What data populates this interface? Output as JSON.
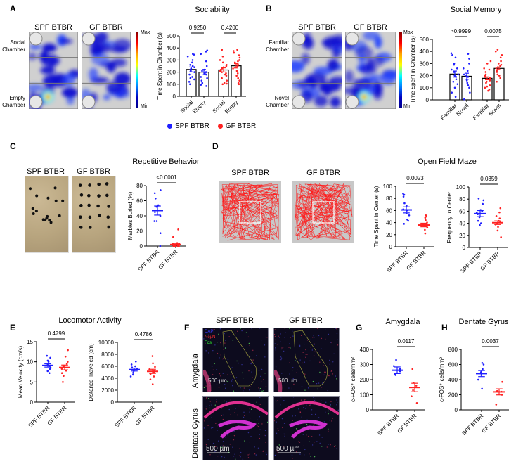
{
  "panels": {
    "A": {
      "label": "A",
      "title": "Sociability",
      "groups": [
        "SPF BTBR",
        "GF BTBR"
      ],
      "rows": [
        "Social Chamber",
        "Empty Chamber"
      ],
      "colorbar": {
        "max": "Max",
        "min": "Min"
      }
    },
    "B": {
      "label": "B",
      "title": "Social Memory",
      "groups": [
        "SPF BTBR",
        "GF BTBR"
      ],
      "rows": [
        "Familiar Chamber",
        "Novel Chamber"
      ],
      "colorbar": {
        "max": "Max",
        "min": "Min"
      }
    },
    "C": {
      "label": "C",
      "title": "Repetitive Behavior",
      "groups": [
        "SPF BTBR",
        "GF BTBR"
      ]
    },
    "D": {
      "label": "D",
      "title": "Open Field Maze",
      "groups": [
        "SPF BTBR",
        "GF BTBR"
      ]
    },
    "E": {
      "label": "E",
      "title": "Locomotor Activity"
    },
    "F": {
      "label": "F",
      "groups": [
        "SPF BTBR",
        "GF BTBR"
      ],
      "rows": [
        "Amygdala",
        "Dentate Gyrus"
      ],
      "channels": [
        "DAPI",
        "NeuN",
        "Fos"
      ],
      "scale_bar": "500 µm"
    },
    "G": {
      "label": "G",
      "title": "Amygdala"
    },
    "H": {
      "label": "H",
      "title": "Dentate Gyrus"
    }
  },
  "legend": [
    {
      "name": "SPF BTBR",
      "color": "#1f1fff"
    },
    {
      "name": "GF BTBR",
      "color": "#ff2222"
    }
  ],
  "colors": {
    "SPF BTBR": "#1f1fff",
    "GF BTBR": "#ff2222"
  },
  "chart_data": [
    {
      "id": "A",
      "type": "bar",
      "title": "Sociability",
      "ylabel": "Time Spent in Chamber (s)",
      "ylim": [
        0,
        500
      ],
      "yticks": [
        0,
        100,
        200,
        300,
        400,
        500
      ],
      "categories": [
        "Social",
        "Empty",
        "Social",
        "Empty"
      ],
      "groups": [
        {
          "series": "SPF BTBR",
          "mean": 222,
          "sem": 20,
          "points": [
            100,
            120,
            140,
            150,
            160,
            180,
            200,
            210,
            220,
            230,
            240,
            250,
            260,
            280,
            300,
            330,
            345,
            350
          ]
        },
        {
          "series": "SPF BTBR",
          "mean": 200,
          "sem": 22,
          "points": [
            85,
            95,
            110,
            130,
            150,
            160,
            180,
            190,
            200,
            210,
            220,
            250,
            290,
            350,
            370,
            380
          ]
        },
        {
          "series": "GF BTBR",
          "mean": 218,
          "sem": 17,
          "points": [
            100,
            105,
            110,
            130,
            150,
            170,
            180,
            190,
            200,
            210,
            215,
            220,
            230,
            240,
            250,
            260,
            280,
            300,
            330,
            385
          ]
        },
        {
          "series": "GF BTBR",
          "mean": 252,
          "sem": 18,
          "points": [
            100,
            110,
            130,
            150,
            170,
            190,
            210,
            230,
            250,
            260,
            270,
            280,
            290,
            300,
            320,
            340,
            360,
            375,
            385
          ]
        }
      ],
      "comparisons": [
        {
          "pair": [
            0,
            1
          ],
          "p": "0.9250"
        },
        {
          "pair": [
            2,
            3
          ],
          "p": "0.4200"
        }
      ]
    },
    {
      "id": "B",
      "type": "bar",
      "title": "Social Memory",
      "ylabel": "Time Spent in Chamber (s)",
      "ylim": [
        0,
        500
      ],
      "yticks": [
        0,
        100,
        200,
        300,
        400,
        500
      ],
      "categories": [
        "Familiar",
        "Novel",
        "Familiar",
        "Novel"
      ],
      "groups": [
        {
          "series": "SPF BTBR",
          "mean": 213,
          "sem": 25,
          "points": [
            25,
            60,
            100,
            130,
            150,
            170,
            190,
            200,
            210,
            230,
            250,
            260,
            290,
            300,
            350,
            370,
            385
          ]
        },
        {
          "series": "SPF BTBR",
          "mean": 195,
          "sem": 25,
          "points": [
            5,
            60,
            100,
            120,
            140,
            160,
            170,
            190,
            200,
            210,
            240,
            260,
            300,
            340,
            380
          ]
        },
        {
          "series": "GF BTBR",
          "mean": 178,
          "sem": 12,
          "points": [
            75,
            85,
            100,
            110,
            120,
            140,
            150,
            160,
            170,
            180,
            190,
            200,
            210,
            230,
            250,
            260,
            300,
            320
          ]
        },
        {
          "series": "GF BTBR",
          "mean": 260,
          "sem": 11,
          "points": [
            150,
            180,
            200,
            210,
            230,
            240,
            250,
            260,
            270,
            280,
            290,
            300,
            320,
            350,
            370,
            400,
            415
          ]
        }
      ],
      "comparisons": [
        {
          "pair": [
            0,
            1
          ],
          "p": ">0.9999"
        },
        {
          "pair": [
            2,
            3
          ],
          "p": "0.0075"
        }
      ]
    },
    {
      "id": "C",
      "type": "scatter",
      "title": "Repetitive Behavior",
      "ylabel": "Marbles Buried  (%)",
      "ylim": [
        0,
        80
      ],
      "yticks": [
        0,
        20,
        40,
        60,
        80
      ],
      "categories": [
        "SPF BTBR",
        "GF BTBR"
      ],
      "groups": [
        {
          "series": "SPF BTBR",
          "mean": 47,
          "sem": 6,
          "points": [
            0,
            17,
            33,
            33,
            40,
            45,
            52,
            53,
            54,
            63,
            70,
            74
          ]
        },
        {
          "series": "GF BTBR",
          "mean": 2,
          "sem": 1,
          "points": [
            0,
            0,
            0,
            0,
            0,
            0,
            2,
            2,
            3,
            3,
            4,
            12,
            22
          ]
        }
      ],
      "comparisons": [
        {
          "pair": [
            0,
            1
          ],
          "p": "<0.0001"
        }
      ]
    },
    {
      "id": "D1",
      "type": "scatter",
      "title": "Open Field Maze",
      "ylabel": "Time Spent in Center (s)",
      "ylim": [
        0,
        100
      ],
      "yticks": [
        0,
        20,
        40,
        60,
        80,
        100
      ],
      "categories": [
        "SPF BTBR",
        "GF BTBR"
      ],
      "groups": [
        {
          "series": "SPF BTBR",
          "mean": 61,
          "sem": 5,
          "points": [
            38,
            43,
            45,
            52,
            55,
            60,
            62,
            68,
            72,
            83,
            86,
            88
          ]
        },
        {
          "series": "GF BTBR",
          "mean": 36,
          "sem": 3,
          "points": [
            22,
            28,
            32,
            34,
            36,
            38,
            40,
            44,
            48,
            50,
            52
          ]
        }
      ],
      "comparisons": [
        {
          "pair": [
            0,
            1
          ],
          "p": "0.0023"
        }
      ]
    },
    {
      "id": "D2",
      "type": "scatter",
      "title": "Open Field Maze",
      "ylabel": "Frequency to Center",
      "ylim": [
        0,
        100
      ],
      "yticks": [
        0,
        20,
        40,
        60,
        80,
        100
      ],
      "categories": [
        "SPF BTBR",
        "GF BTBR"
      ],
      "groups": [
        {
          "series": "SPF BTBR",
          "mean": 56,
          "sem": 5,
          "points": [
            37,
            40,
            44,
            50,
            55,
            58,
            60,
            62,
            72,
            78,
            81
          ]
        },
        {
          "series": "GF BTBR",
          "mean": 41,
          "sem": 3,
          "points": [
            17,
            28,
            34,
            38,
            40,
            42,
            44,
            48,
            52,
            58,
            65
          ]
        }
      ],
      "comparisons": [
        {
          "pair": [
            0,
            1
          ],
          "p": "0.0359"
        }
      ]
    },
    {
      "id": "E1",
      "type": "scatter",
      "title": "Locomotor Activity",
      "ylabel": "Mean Velocity (cm/s)",
      "ylim": [
        0,
        15
      ],
      "yticks": [
        0,
        5,
        10,
        15
      ],
      "categories": [
        "SPF BTBR",
        "GF BTBR"
      ],
      "groups": [
        {
          "series": "SPF BTBR",
          "mean": 9.1,
          "sem": 0.4,
          "points": [
            7.2,
            7.7,
            8.2,
            8.5,
            9,
            9.2,
            9.5,
            10,
            10.3,
            11,
            11.5
          ]
        },
        {
          "series": "GF BTBR",
          "mean": 8.6,
          "sem": 0.6,
          "points": [
            5,
            6.5,
            7.2,
            7.8,
            8.3,
            8.7,
            9,
            9.5,
            10,
            11.3,
            12.9
          ]
        }
      ],
      "comparisons": [
        {
          "pair": [
            0,
            1
          ],
          "p": "0.4799"
        }
      ]
    },
    {
      "id": "E2",
      "type": "scatter",
      "title": "Locomotor Activity",
      "ylabel": "Distance Traveled (cm)",
      "ylim": [
        0,
        10000
      ],
      "yticks": [
        0,
        2000,
        4000,
        6000,
        8000,
        10000
      ],
      "categories": [
        "SPF BTBR",
        "GF BTBR"
      ],
      "groups": [
        {
          "series": "SPF BTBR",
          "mean": 5450,
          "sem": 250,
          "points": [
            4300,
            4600,
            4900,
            5200,
            5400,
            5600,
            5800,
            6000,
            6300,
            6800
          ]
        },
        {
          "series": "GF BTBR",
          "mean": 5150,
          "sem": 350,
          "points": [
            3000,
            3800,
            4300,
            4700,
            5000,
            5200,
            5500,
            5900,
            6500,
            7700
          ]
        }
      ],
      "comparisons": [
        {
          "pair": [
            0,
            1
          ],
          "p": "0.4786"
        }
      ]
    },
    {
      "id": "G",
      "type": "scatter",
      "title": "Amygdala",
      "ylabel": "c-FOS⁺ cells/mm²",
      "ylim": [
        0,
        400
      ],
      "yticks": [
        0,
        100,
        200,
        300,
        400
      ],
      "categories": [
        "SPF BTBR",
        "GF BTBR"
      ],
      "groups": [
        {
          "series": "SPF BTBR",
          "mean": 262,
          "sem": 22,
          "points": [
            230,
            235,
            255,
            270,
            290,
            330
          ]
        },
        {
          "series": "GF BTBR",
          "mean": 148,
          "sem": 28,
          "points": [
            45,
            90,
            130,
            160,
            180,
            270
          ]
        }
      ],
      "comparisons": [
        {
          "pair": [
            0,
            1
          ],
          "p": "0.0117"
        }
      ]
    },
    {
      "id": "H",
      "type": "scatter",
      "title": "Dentate Gyrus",
      "ylabel": "c-FOS⁺ cells/mm²",
      "ylim": [
        0,
        800
      ],
      "yticks": [
        0,
        200,
        400,
        600,
        800
      ],
      "categories": [
        "SPF BTBR",
        "GF BTBR"
      ],
      "groups": [
        {
          "series": "SPF BTBR",
          "mean": 480,
          "sem": 40,
          "points": [
            280,
            400,
            460,
            500,
            540,
            600,
            620
          ]
        },
        {
          "series": "GF BTBR",
          "mean": 238,
          "sem": 40,
          "points": [
            70,
            200,
            240,
            250,
            370
          ]
        }
      ],
      "comparisons": [
        {
          "pair": [
            0,
            1
          ],
          "p": "0.0037"
        }
      ]
    }
  ]
}
